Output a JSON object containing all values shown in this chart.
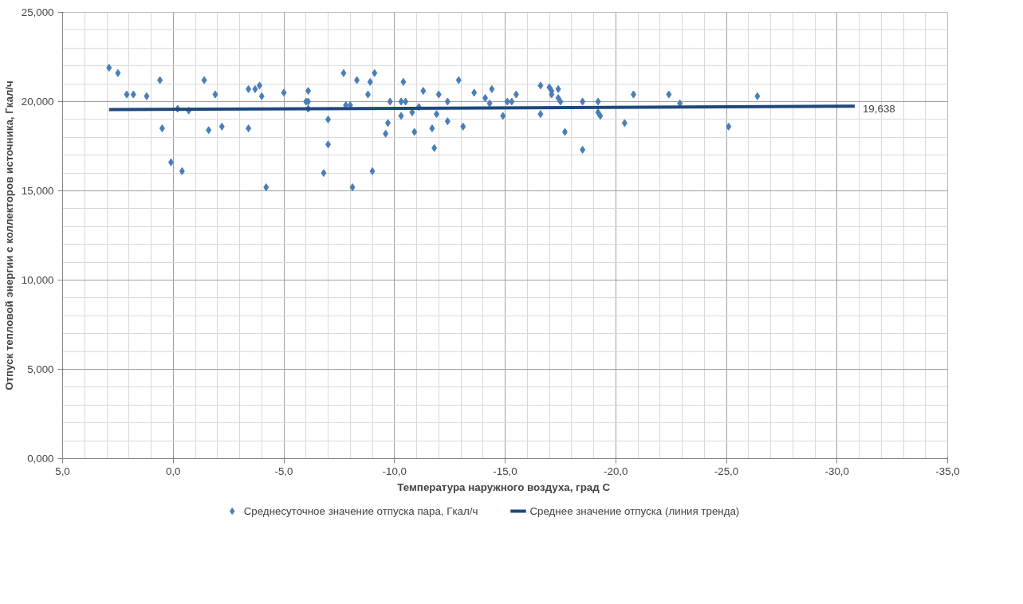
{
  "chart_data": {
    "type": "scatter",
    "xlabel": "Температура наружного  воздуха, град С",
    "ylabel": "Отпуск тепловой энергии с коллекторов источника, Гкал/ч",
    "xlim": [
      5,
      -35
    ],
    "ylim": [
      0,
      25
    ],
    "xticks": [
      {
        "value": 5,
        "label": "5,0"
      },
      {
        "value": 0,
        "label": "0,0"
      },
      {
        "value": -5,
        "label": "-5,0"
      },
      {
        "value": -10,
        "label": "-10,0"
      },
      {
        "value": -15,
        "label": "-15,0"
      },
      {
        "value": -20,
        "label": "-20,0"
      },
      {
        "value": -25,
        "label": "-25,0"
      },
      {
        "value": -30,
        "label": "-30,0"
      },
      {
        "value": -35,
        "label": "-35,0"
      }
    ],
    "yticks": [
      {
        "value": 0,
        "label": "0,000"
      },
      {
        "value": 5,
        "label": "5,000"
      },
      {
        "value": 10,
        "label": "10,000"
      },
      {
        "value": 15,
        "label": "15,000"
      },
      {
        "value": 20,
        "label": "20,000"
      },
      {
        "value": 25,
        "label": "25,000"
      }
    ],
    "grid": true,
    "legend": "bottom",
    "marker": "diamond",
    "series": [
      {
        "name": "Среднесуточное значение отпуска пара, Гкал/ч",
        "color": "#4a7ebb",
        "x": [
          2.9,
          2.5,
          2.1,
          1.8,
          1.2,
          0.6,
          0.5,
          0.1,
          -0.2,
          -0.4,
          -0.7,
          -1.4,
          -1.6,
          -1.9,
          -2.2,
          -3.4,
          -3.4,
          -3.7,
          -3.9,
          -4.0,
          -4.2,
          -5.0,
          -6.0,
          -6.1,
          -6.1,
          -6.1,
          -6.8,
          -7.0,
          -7.0,
          -7.7,
          -7.8,
          -8.0,
          -8.1,
          -8.3,
          -8.8,
          -8.9,
          -9.0,
          -9.1,
          -9.6,
          -9.7,
          -9.8,
          -10.3,
          -10.3,
          -10.4,
          -10.5,
          -10.8,
          -10.9,
          -11.1,
          -11.3,
          -11.7,
          -11.8,
          -11.9,
          -12.0,
          -12.4,
          -12.4,
          -12.9,
          -13.1,
          -13.6,
          -14.1,
          -14.3,
          -14.4,
          -14.9,
          -15.1,
          -15.3,
          -15.5,
          -16.6,
          -16.6,
          -17.0,
          -17.1,
          -17.1,
          -17.4,
          -17.4,
          -17.5,
          -17.7,
          -18.5,
          -18.5,
          -19.2,
          -19.2,
          -19.3,
          -20.4,
          -20.8,
          -22.4,
          -22.9,
          -25.1,
          -26.4
        ],
        "values": [
          21.9,
          21.6,
          20.4,
          20.4,
          20.3,
          21.2,
          18.5,
          16.6,
          19.6,
          16.1,
          19.5,
          21.2,
          18.4,
          20.4,
          18.6,
          18.5,
          20.7,
          20.7,
          20.9,
          20.3,
          15.2,
          20.5,
          20.0,
          20.0,
          20.6,
          19.6,
          16.0,
          19.0,
          17.6,
          21.6,
          19.8,
          19.8,
          15.2,
          21.2,
          20.4,
          21.1,
          16.1,
          21.6,
          18.2,
          18.8,
          20.0,
          19.2,
          20.0,
          21.1,
          20.0,
          19.4,
          18.3,
          19.7,
          20.6,
          18.5,
          17.4,
          19.3,
          20.4,
          18.9,
          20.0,
          21.2,
          18.6,
          20.5,
          20.2,
          19.9,
          20.7,
          19.2,
          20.0,
          20.0,
          20.4,
          20.9,
          19.3,
          20.8,
          20.6,
          20.4,
          20.7,
          20.2,
          20.0,
          18.3,
          17.3,
          20.0,
          20.0,
          19.4,
          19.2,
          18.8,
          20.4,
          20.4,
          19.9,
          18.6,
          20.3
        ]
      },
      {
        "name": "Среднее значение отпуска (линия тренда)",
        "type": "line",
        "marker": "none",
        "line_style": "solid",
        "color": "#1f497d",
        "x": [
          2.9,
          -30.8
        ],
        "values": [
          19.55,
          19.74
        ]
      }
    ],
    "annotations": [
      {
        "text": "19,638",
        "x": -30.8,
        "y": 19.74
      }
    ]
  }
}
